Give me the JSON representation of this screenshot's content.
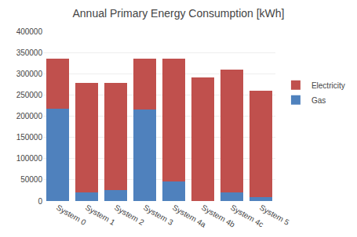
{
  "chart_data": {
    "type": "bar",
    "stacked": true,
    "title": "Annual Primary Energy Consumption [kWh]",
    "categories": [
      "System 0",
      "System 1",
      "System 2",
      "System 3",
      "System 4a",
      "System 4b",
      "System 4c",
      "System 5"
    ],
    "series": [
      {
        "name": "Gas",
        "color": "#4F81BD",
        "values": [
          218000,
          20000,
          25000,
          215000,
          47000,
          0,
          20000,
          10000
        ]
      },
      {
        "name": "Electricity",
        "color": "#C0504D",
        "values": [
          118000,
          258000,
          253000,
          120000,
          288000,
          291000,
          289000,
          250000
        ]
      }
    ],
    "ylim": [
      0,
      400000
    ],
    "yticks": [
      0,
      50000,
      100000,
      150000,
      200000,
      250000,
      300000,
      350000,
      400000
    ],
    "grid": true,
    "legend": "right"
  }
}
